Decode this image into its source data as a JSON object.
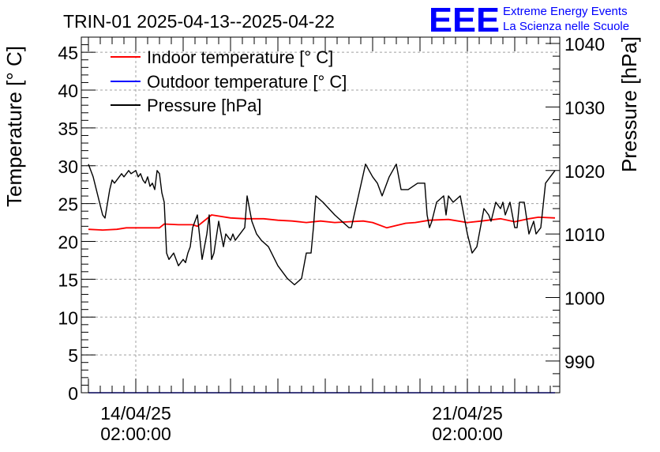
{
  "chart_data": {
    "type": "line",
    "title": "TRIN-01 2025-04-13--2025-04-22",
    "ylabel": "Temperature [° C]",
    "y2label": "Pressure [hPa]",
    "ylim": [
      0,
      47
    ],
    "y2lim": [
      985,
      1041
    ],
    "yticks": [
      "0",
      "5",
      "10",
      "15",
      "20",
      "25",
      "30",
      "35",
      "40",
      "45"
    ],
    "y2ticks": [
      "990",
      "1000",
      "1010",
      "1020",
      "1030",
      "1040"
    ],
    "xticks": [
      {
        "date": "14/04/25",
        "time": "02:00:00",
        "day": 1
      },
      {
        "date": "21/04/25",
        "time": "02:00:00",
        "day": 8
      }
    ],
    "xlim_days": [
      -0.15,
      9.95
    ],
    "grid": true,
    "legend": [
      {
        "label": "Indoor temperature [° C]",
        "color": "#ff0000"
      },
      {
        "label": "Outdoor temperature [° C]",
        "color": "#0000ff"
      },
      {
        "label": "Pressure [hPa]",
        "color": "#000000"
      }
    ],
    "series": [
      {
        "name": "Indoor temperature [° C]",
        "axis": "left",
        "x": [
          0,
          0.3,
          0.6,
          0.8,
          1.2,
          1.5,
          1.6,
          1.9,
          2.2,
          2.3,
          2.6,
          3.0,
          3.3,
          3.7,
          4.0,
          4.3,
          4.6,
          4.9,
          5.2,
          5.5,
          5.8,
          6.0,
          6.3,
          6.7,
          6.9,
          7.2,
          7.6,
          8.0,
          8.3,
          8.7,
          9.0,
          9.3,
          9.5,
          9.85
        ],
        "values": [
          21.6,
          21.5,
          21.6,
          21.8,
          21.8,
          21.8,
          22.3,
          22.2,
          22.2,
          22.0,
          23.5,
          23.1,
          23.0,
          23.0,
          22.8,
          22.7,
          22.5,
          22.7,
          22.5,
          22.6,
          22.7,
          22.5,
          21.8,
          22.4,
          22.5,
          22.8,
          22.9,
          22.5,
          22.7,
          23.0,
          22.6,
          23.0,
          23.2,
          23.1
        ]
      },
      {
        "name": "Outdoor temperature [° C]",
        "axis": "left",
        "x": [
          0,
          9.85
        ],
        "values": [
          0,
          0
        ]
      },
      {
        "name": "Pressure [hPa]",
        "axis": "right",
        "x": [
          0,
          0.1,
          0.3,
          0.35,
          0.45,
          0.5,
          0.55,
          0.7,
          0.75,
          0.85,
          0.9,
          1.0,
          1.05,
          1.1,
          1.15,
          1.2,
          1.25,
          1.3,
          1.35,
          1.4,
          1.45,
          1.5,
          1.55,
          1.6,
          1.65,
          1.7,
          1.8,
          1.9,
          2.0,
          2.05,
          2.1,
          2.15,
          2.2,
          2.25,
          2.3,
          2.4,
          2.5,
          2.55,
          2.6,
          2.65,
          2.75,
          2.85,
          2.9,
          3.0,
          3.05,
          3.1,
          3.2,
          3.3,
          3.35,
          3.45,
          3.55,
          3.65,
          3.8,
          4.0,
          4.2,
          4.35,
          4.5,
          4.6,
          4.7,
          4.75,
          4.8,
          4.95,
          5.2,
          5.5,
          5.55,
          5.7,
          5.85,
          6.0,
          6.1,
          6.2,
          6.25,
          6.35,
          6.5,
          6.6,
          6.75,
          6.95,
          7.1,
          7.15,
          7.2,
          7.25,
          7.35,
          7.5,
          7.55,
          7.6,
          7.7,
          7.85,
          8.0,
          8.1,
          8.2,
          8.35,
          8.45,
          8.5,
          8.6,
          8.7,
          8.75,
          8.8,
          8.9,
          9.0,
          9.05,
          9.1,
          9.2,
          9.3,
          9.4,
          9.45,
          9.55,
          9.65,
          9.85
        ],
        "values": [
          1021,
          1019,
          1013,
          1012.5,
          1017,
          1018.5,
          1018,
          1019.5,
          1019,
          1020,
          1019.5,
          1020,
          1019,
          1019.5,
          1018.5,
          1018,
          1019,
          1017.5,
          1018,
          1017,
          1020,
          1019.5,
          1016.5,
          1015,
          1007,
          1006,
          1007,
          1005,
          1006,
          1005.5,
          1007,
          1008,
          1011,
          1012,
          1013,
          1006,
          1010,
          1013,
          1006,
          1007,
          1012,
          1008,
          1010,
          1009,
          1010,
          1009,
          1010,
          1011,
          1016,
          1012,
          1010,
          1009,
          1008,
          1005,
          1003,
          1002,
          1003,
          1007,
          1007,
          1011,
          1016,
          1015,
          1013,
          1011,
          1011,
          1016,
          1021,
          1019,
          1018,
          1016,
          1017,
          1019,
          1021,
          1017,
          1017,
          1018,
          1018,
          1013,
          1011,
          1012,
          1015,
          1016,
          1013,
          1016,
          1015,
          1016,
          1010,
          1007,
          1008,
          1014,
          1013,
          1012,
          1015,
          1014,
          1015,
          1013,
          1015,
          1011,
          1011,
          1015,
          1015,
          1010,
          1012,
          1010,
          1011,
          1018,
          1020
        ]
      }
    ]
  },
  "logo": {
    "text": "EEE",
    "line1": "Extreme Energy Events",
    "line2": "La Scienza nelle Scuole",
    "color": "#0000ff"
  }
}
